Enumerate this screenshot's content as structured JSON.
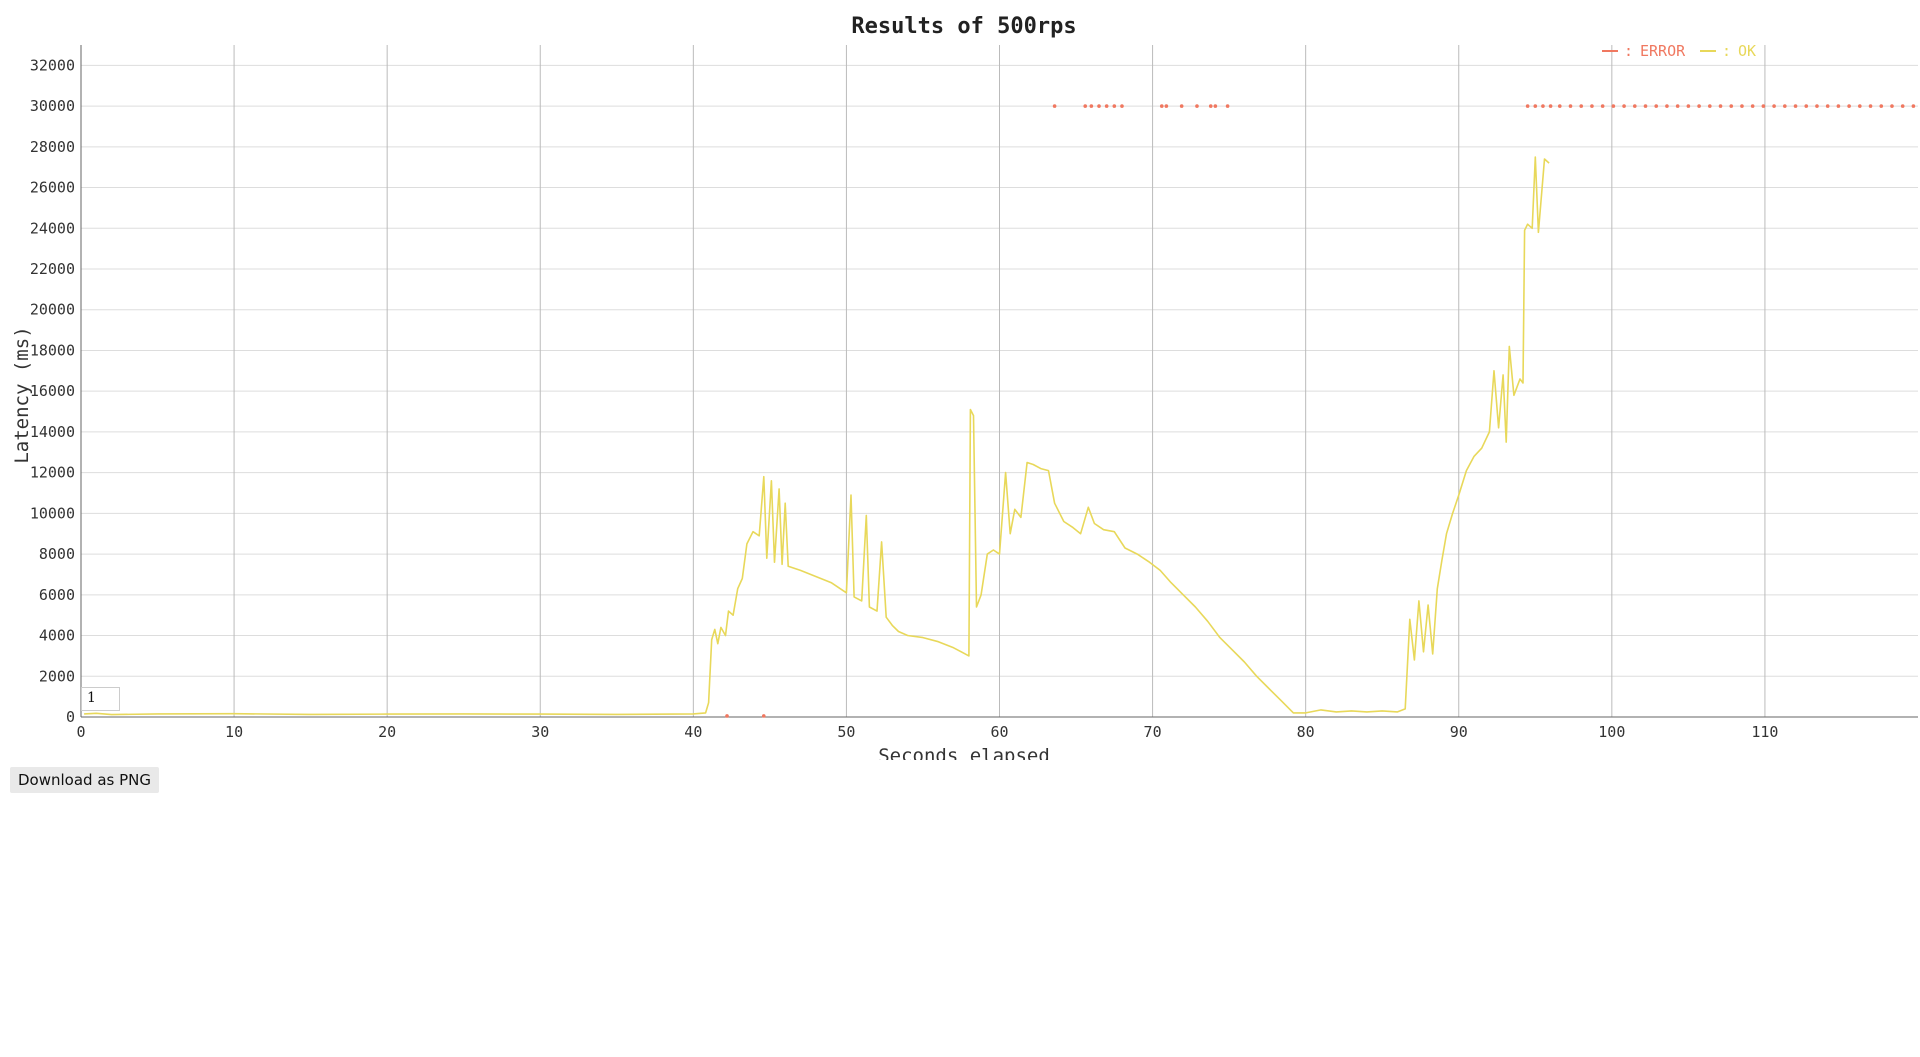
{
  "chart_data": {
    "type": "line",
    "title": "Results of 500rps",
    "xlabel": "Seconds elapsed",
    "ylabel": "Latency (ms)",
    "xlim": [
      0,
      120
    ],
    "ylim": [
      0,
      33000
    ],
    "xticks": [
      0,
      10,
      20,
      30,
      40,
      50,
      60,
      70,
      80,
      90,
      100,
      110
    ],
    "yticks": [
      0,
      2000,
      4000,
      6000,
      8000,
      10000,
      12000,
      14000,
      16000,
      18000,
      20000,
      22000,
      24000,
      26000,
      28000,
      30000,
      32000
    ],
    "grid": true,
    "legend_position": "top-right",
    "series": [
      {
        "name": "ERROR",
        "color": "#f07860",
        "style": "points",
        "points": [
          [
            63.6,
            30000
          ],
          [
            65.6,
            30000
          ],
          [
            66.0,
            30000
          ],
          [
            66.5,
            30000
          ],
          [
            67.0,
            30000
          ],
          [
            67.5,
            30000
          ],
          [
            68.0,
            30000
          ],
          [
            70.6,
            30000
          ],
          [
            70.9,
            30000
          ],
          [
            71.9,
            30000
          ],
          [
            72.9,
            30000
          ],
          [
            73.8,
            30000
          ],
          [
            74.1,
            30000
          ],
          [
            74.9,
            30000
          ],
          [
            42.2,
            50
          ],
          [
            44.6,
            50
          ],
          [
            94.5,
            30000
          ],
          [
            95.0,
            30000
          ],
          [
            95.5,
            30000
          ],
          [
            96.0,
            30000
          ],
          [
            96.6,
            30000
          ],
          [
            97.3,
            30000
          ],
          [
            98.0,
            30000
          ],
          [
            98.7,
            30000
          ],
          [
            99.4,
            30000
          ],
          [
            100.1,
            30000
          ],
          [
            100.8,
            30000
          ],
          [
            101.5,
            30000
          ],
          [
            102.2,
            30000
          ],
          [
            102.9,
            30000
          ],
          [
            103.6,
            30000
          ],
          [
            104.3,
            30000
          ],
          [
            105.0,
            30000
          ],
          [
            105.7,
            30000
          ],
          [
            106.4,
            30000
          ],
          [
            107.1,
            30000
          ],
          [
            107.8,
            30000
          ],
          [
            108.5,
            30000
          ],
          [
            109.2,
            30000
          ],
          [
            109.9,
            30000
          ],
          [
            110.6,
            30000
          ],
          [
            111.3,
            30000
          ],
          [
            112.0,
            30000
          ],
          [
            112.7,
            30000
          ],
          [
            113.4,
            30000
          ],
          [
            114.1,
            30000
          ],
          [
            114.8,
            30000
          ],
          [
            115.5,
            30000
          ],
          [
            116.2,
            30000
          ],
          [
            116.9,
            30000
          ],
          [
            117.6,
            30000
          ],
          [
            118.3,
            30000
          ],
          [
            119.0,
            30000
          ],
          [
            119.7,
            30000
          ]
        ]
      },
      {
        "name": "OK",
        "color": "#e8d85a",
        "style": "line",
        "points": [
          [
            0.2,
            150
          ],
          [
            1,
            180
          ],
          [
            2,
            120
          ],
          [
            5,
            150
          ],
          [
            10,
            160
          ],
          [
            15,
            130
          ],
          [
            20,
            140
          ],
          [
            25,
            150
          ],
          [
            30,
            140
          ],
          [
            35,
            130
          ],
          [
            40,
            150
          ],
          [
            40.8,
            200
          ],
          [
            41.0,
            700
          ],
          [
            41.2,
            3800
          ],
          [
            41.4,
            4300
          ],
          [
            41.6,
            3600
          ],
          [
            41.8,
            4400
          ],
          [
            42.1,
            4000
          ],
          [
            42.3,
            5200
          ],
          [
            42.6,
            5000
          ],
          [
            42.9,
            6300
          ],
          [
            43.2,
            6800
          ],
          [
            43.5,
            8500
          ],
          [
            43.9,
            9100
          ],
          [
            44.3,
            8900
          ],
          [
            44.6,
            11800
          ],
          [
            44.8,
            7800
          ],
          [
            45.1,
            11600
          ],
          [
            45.3,
            7600
          ],
          [
            45.6,
            11200
          ],
          [
            45.8,
            7500
          ],
          [
            46.0,
            10500
          ],
          [
            46.2,
            7400
          ],
          [
            47.0,
            7200
          ],
          [
            48.0,
            6900
          ],
          [
            49.0,
            6600
          ],
          [
            50.0,
            6100
          ],
          [
            50.3,
            10900
          ],
          [
            50.5,
            5900
          ],
          [
            51.0,
            5700
          ],
          [
            51.3,
            9900
          ],
          [
            51.5,
            5400
          ],
          [
            52.0,
            5200
          ],
          [
            52.3,
            8600
          ],
          [
            52.6,
            4900
          ],
          [
            53.0,
            4500
          ],
          [
            53.4,
            4200
          ],
          [
            54.0,
            4000
          ],
          [
            55.0,
            3900
          ],
          [
            56.0,
            3700
          ],
          [
            57.0,
            3400
          ],
          [
            57.5,
            3200
          ],
          [
            58.0,
            3000
          ],
          [
            58.1,
            15100
          ],
          [
            58.3,
            14800
          ],
          [
            58.5,
            5400
          ],
          [
            58.8,
            6000
          ],
          [
            59.2,
            8000
          ],
          [
            59.6,
            8200
          ],
          [
            60.0,
            8000
          ],
          [
            60.4,
            12000
          ],
          [
            60.7,
            9000
          ],
          [
            61.0,
            10200
          ],
          [
            61.4,
            9800
          ],
          [
            61.8,
            12500
          ],
          [
            62.2,
            12400
          ],
          [
            62.7,
            12200
          ],
          [
            63.2,
            12100
          ],
          [
            63.6,
            10500
          ],
          [
            64.2,
            9600
          ],
          [
            64.8,
            9300
          ],
          [
            65.3,
            9000
          ],
          [
            65.8,
            10300
          ],
          [
            66.2,
            9500
          ],
          [
            66.8,
            9200
          ],
          [
            67.5,
            9100
          ],
          [
            68.2,
            8300
          ],
          [
            69.0,
            8000
          ],
          [
            69.8,
            7600
          ],
          [
            70.5,
            7200
          ],
          [
            71.2,
            6600
          ],
          [
            72.0,
            6000
          ],
          [
            72.8,
            5400
          ],
          [
            73.6,
            4700
          ],
          [
            74.4,
            3900
          ],
          [
            75.2,
            3300
          ],
          [
            76.0,
            2700
          ],
          [
            76.8,
            2000
          ],
          [
            77.6,
            1400
          ],
          [
            78.4,
            800
          ],
          [
            79.2,
            200
          ],
          [
            80.0,
            200
          ],
          [
            81.0,
            350
          ],
          [
            82.0,
            250
          ],
          [
            83.0,
            300
          ],
          [
            84.0,
            250
          ],
          [
            85.0,
            300
          ],
          [
            86.0,
            250
          ],
          [
            86.5,
            400
          ],
          [
            86.8,
            4800
          ],
          [
            87.1,
            2800
          ],
          [
            87.4,
            5700
          ],
          [
            87.7,
            3200
          ],
          [
            88.0,
            5500
          ],
          [
            88.3,
            3100
          ],
          [
            88.6,
            6300
          ],
          [
            88.9,
            7700
          ],
          [
            89.2,
            9000
          ],
          [
            89.6,
            10000
          ],
          [
            90.0,
            10900
          ],
          [
            90.5,
            12100
          ],
          [
            91.0,
            12800
          ],
          [
            91.5,
            13200
          ],
          [
            92.0,
            14000
          ],
          [
            92.3,
            17000
          ],
          [
            92.6,
            14200
          ],
          [
            92.9,
            16800
          ],
          [
            93.1,
            13500
          ],
          [
            93.3,
            18200
          ],
          [
            93.6,
            15800
          ],
          [
            94.0,
            16600
          ],
          [
            94.2,
            16400
          ],
          [
            94.3,
            23900
          ],
          [
            94.5,
            24200
          ],
          [
            94.8,
            24000
          ],
          [
            95.0,
            27500
          ],
          [
            95.2,
            23800
          ],
          [
            95.6,
            27400
          ],
          [
            95.9,
            27200
          ]
        ]
      }
    ]
  },
  "ui": {
    "download_label": "Download as PNG",
    "marker_value": "1",
    "legend_sep": ":"
  }
}
